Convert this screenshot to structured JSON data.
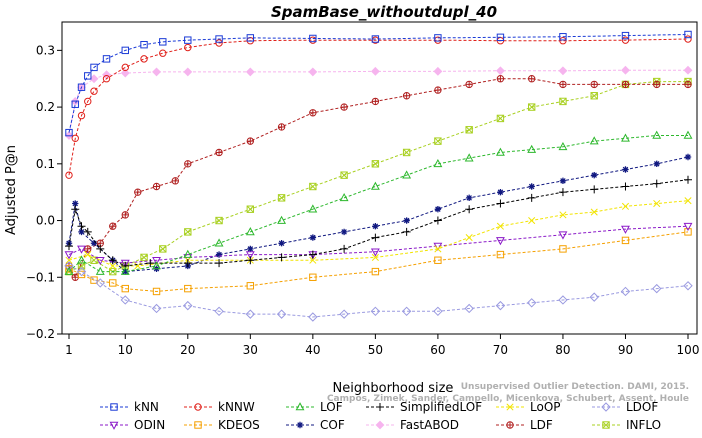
{
  "chart_data": {
    "type": "line",
    "title": "SpamBase_withoutdupl_40",
    "xlabel": "Neighborhood size",
    "ylabel": "Adjusted P@n",
    "xlim": [
      1,
      100
    ],
    "ylim": [
      -0.2,
      0.35
    ],
    "xticks": [
      1,
      10,
      20,
      30,
      40,
      50,
      60,
      70,
      80,
      90,
      100
    ],
    "yticks": [
      -0.2,
      -0.1,
      0.0,
      0.1,
      0.2,
      0.3
    ],
    "ytick_labels": [
      "−0.2",
      "−0.1",
      "0.0",
      "0.1",
      "0.2",
      "0.3"
    ],
    "grid": false,
    "legend_position": "bottom",
    "watermark": {
      "line1": "Unsupervised Outlier Detection. DAMI, 2015.",
      "line2": "Campos, Zimek, Sander, Campello, Micenkova, Schubert, Assent, Houle"
    },
    "series": [
      {
        "name": "kNN",
        "color": "#1a3ad6",
        "marker": "square",
        "points": [
          [
            1,
            0.155
          ],
          [
            2,
            0.205
          ],
          [
            3,
            0.235
          ],
          [
            4,
            0.255
          ],
          [
            5,
            0.27
          ],
          [
            7,
            0.285
          ],
          [
            10,
            0.3
          ],
          [
            13,
            0.31
          ],
          [
            16,
            0.315
          ],
          [
            20,
            0.318
          ],
          [
            25,
            0.32
          ],
          [
            30,
            0.322
          ],
          [
            40,
            0.321
          ],
          [
            50,
            0.32
          ],
          [
            60,
            0.322
          ],
          [
            70,
            0.323
          ],
          [
            80,
            0.324
          ],
          [
            90,
            0.326
          ],
          [
            100,
            0.328
          ]
        ]
      },
      {
        "name": "kNNW",
        "color": "#e0201a",
        "marker": "circle",
        "points": [
          [
            1,
            0.08
          ],
          [
            2,
            0.145
          ],
          [
            3,
            0.185
          ],
          [
            4,
            0.21
          ],
          [
            5,
            0.228
          ],
          [
            7,
            0.25
          ],
          [
            10,
            0.27
          ],
          [
            13,
            0.285
          ],
          [
            16,
            0.295
          ],
          [
            20,
            0.305
          ],
          [
            25,
            0.313
          ],
          [
            30,
            0.317
          ],
          [
            40,
            0.318
          ],
          [
            50,
            0.318
          ],
          [
            60,
            0.318
          ],
          [
            70,
            0.317
          ],
          [
            80,
            0.317
          ],
          [
            90,
            0.318
          ],
          [
            100,
            0.32
          ]
        ]
      },
      {
        "name": "LOF",
        "color": "#2db82d",
        "marker": "triangle-up",
        "points": [
          [
            1,
            -0.09
          ],
          [
            3,
            -0.07
          ],
          [
            6,
            -0.09
          ],
          [
            10,
            -0.09
          ],
          [
            15,
            -0.08
          ],
          [
            20,
            -0.06
          ],
          [
            25,
            -0.04
          ],
          [
            30,
            -0.02
          ],
          [
            35,
            0.0
          ],
          [
            40,
            0.02
          ],
          [
            45,
            0.04
          ],
          [
            50,
            0.06
          ],
          [
            55,
            0.08
          ],
          [
            60,
            0.1
          ],
          [
            65,
            0.11
          ],
          [
            70,
            0.12
          ],
          [
            75,
            0.125
          ],
          [
            80,
            0.13
          ],
          [
            85,
            0.14
          ],
          [
            90,
            0.145
          ],
          [
            95,
            0.15
          ],
          [
            100,
            0.15
          ]
        ]
      },
      {
        "name": "SimplifiedLOF",
        "color": "#000000",
        "marker": "plus",
        "points": [
          [
            1,
            -0.045
          ],
          [
            2,
            0.02
          ],
          [
            3,
            -0.01
          ],
          [
            4,
            -0.02
          ],
          [
            6,
            -0.05
          ],
          [
            8,
            -0.07
          ],
          [
            10,
            -0.08
          ],
          [
            14,
            -0.075
          ],
          [
            20,
            -0.075
          ],
          [
            25,
            -0.075
          ],
          [
            30,
            -0.07
          ],
          [
            35,
            -0.065
          ],
          [
            40,
            -0.06
          ],
          [
            45,
            -0.05
          ],
          [
            50,
            -0.03
          ],
          [
            55,
            -0.02
          ],
          [
            60,
            0.0
          ],
          [
            65,
            0.02
          ],
          [
            70,
            0.03
          ],
          [
            75,
            0.04
          ],
          [
            80,
            0.05
          ],
          [
            85,
            0.055
          ],
          [
            90,
            0.06
          ],
          [
            95,
            0.065
          ],
          [
            100,
            0.072
          ]
        ]
      },
      {
        "name": "LoOP",
        "color": "#f2e400",
        "marker": "x",
        "points": [
          [
            1,
            -0.07
          ],
          [
            4,
            -0.06
          ],
          [
            8,
            -0.08
          ],
          [
            12,
            -0.08
          ],
          [
            20,
            -0.07
          ],
          [
            30,
            -0.07
          ],
          [
            40,
            -0.07
          ],
          [
            50,
            -0.065
          ],
          [
            60,
            -0.05
          ],
          [
            65,
            -0.03
          ],
          [
            70,
            -0.01
          ],
          [
            75,
            0.0
          ],
          [
            80,
            0.01
          ],
          [
            85,
            0.015
          ],
          [
            90,
            0.025
          ],
          [
            95,
            0.03
          ],
          [
            100,
            0.035
          ]
        ]
      },
      {
        "name": "LDOF",
        "color": "#9a9ae0",
        "marker": "diamond",
        "points": [
          [
            1,
            -0.08
          ],
          [
            3,
            -0.09
          ],
          [
            6,
            -0.11
          ],
          [
            10,
            -0.14
          ],
          [
            15,
            -0.155
          ],
          [
            20,
            -0.15
          ],
          [
            25,
            -0.16
          ],
          [
            30,
            -0.165
          ],
          [
            35,
            -0.165
          ],
          [
            40,
            -0.17
          ],
          [
            45,
            -0.165
          ],
          [
            50,
            -0.16
          ],
          [
            55,
            -0.16
          ],
          [
            60,
            -0.16
          ],
          [
            65,
            -0.155
          ],
          [
            70,
            -0.15
          ],
          [
            75,
            -0.145
          ],
          [
            80,
            -0.14
          ],
          [
            85,
            -0.135
          ],
          [
            90,
            -0.125
          ],
          [
            95,
            -0.12
          ],
          [
            100,
            -0.115
          ]
        ]
      },
      {
        "name": "ODIN",
        "color": "#8b1ac8",
        "marker": "triangle-down",
        "points": [
          [
            1,
            -0.06
          ],
          [
            3,
            -0.05
          ],
          [
            6,
            -0.07
          ],
          [
            10,
            -0.075
          ],
          [
            15,
            -0.07
          ],
          [
            20,
            -0.065
          ],
          [
            30,
            -0.06
          ],
          [
            40,
            -0.06
          ],
          [
            50,
            -0.055
          ],
          [
            60,
            -0.045
          ],
          [
            70,
            -0.035
          ],
          [
            80,
            -0.025
          ],
          [
            90,
            -0.015
          ],
          [
            100,
            -0.01
          ]
        ]
      },
      {
        "name": "KDEOS",
        "color": "#f5a000",
        "marker": "square",
        "points": [
          [
            1,
            -0.085
          ],
          [
            3,
            -0.095
          ],
          [
            5,
            -0.105
          ],
          [
            8,
            -0.11
          ],
          [
            10,
            -0.12
          ],
          [
            15,
            -0.125
          ],
          [
            20,
            -0.12
          ],
          [
            30,
            -0.115
          ],
          [
            40,
            -0.1
          ],
          [
            50,
            -0.09
          ],
          [
            60,
            -0.07
          ],
          [
            70,
            -0.06
          ],
          [
            80,
            -0.05
          ],
          [
            90,
            -0.035
          ],
          [
            100,
            -0.02
          ]
        ]
      },
      {
        "name": "COF",
        "color": "#101880",
        "marker": "star",
        "points": [
          [
            1,
            -0.04
          ],
          [
            2,
            0.03
          ],
          [
            3,
            -0.02
          ],
          [
            5,
            -0.04
          ],
          [
            8,
            -0.07
          ],
          [
            10,
            -0.09
          ],
          [
            15,
            -0.085
          ],
          [
            20,
            -0.08
          ],
          [
            25,
            -0.06
          ],
          [
            30,
            -0.05
          ],
          [
            35,
            -0.04
          ],
          [
            40,
            -0.03
          ],
          [
            45,
            -0.02
          ],
          [
            50,
            -0.01
          ],
          [
            55,
            0.0
          ],
          [
            60,
            0.02
          ],
          [
            65,
            0.04
          ],
          [
            70,
            0.05
          ],
          [
            75,
            0.06
          ],
          [
            80,
            0.07
          ],
          [
            85,
            0.08
          ],
          [
            90,
            0.09
          ],
          [
            95,
            0.1
          ],
          [
            100,
            0.112
          ]
        ]
      },
      {
        "name": "FastABOD",
        "color": "#f6b4ee",
        "marker": "diamond-filled",
        "points": [
          [
            1,
            0.15
          ],
          [
            2,
            0.21
          ],
          [
            3,
            0.235
          ],
          [
            5,
            0.25
          ],
          [
            7,
            0.257
          ],
          [
            10,
            0.26
          ],
          [
            15,
            0.262
          ],
          [
            20,
            0.262
          ],
          [
            30,
            0.262
          ],
          [
            40,
            0.262
          ],
          [
            50,
            0.263
          ],
          [
            60,
            0.263
          ],
          [
            70,
            0.264
          ],
          [
            80,
            0.264
          ],
          [
            90,
            0.265
          ],
          [
            100,
            0.265
          ]
        ]
      },
      {
        "name": "LDF",
        "color": "#b02020",
        "marker": "circle-plus",
        "points": [
          [
            1,
            -0.08
          ],
          [
            2,
            -0.1
          ],
          [
            4,
            -0.05
          ],
          [
            6,
            -0.04
          ],
          [
            8,
            -0.01
          ],
          [
            10,
            0.01
          ],
          [
            12,
            0.05
          ],
          [
            15,
            0.06
          ],
          [
            18,
            0.07
          ],
          [
            20,
            0.1
          ],
          [
            25,
            0.12
          ],
          [
            30,
            0.14
          ],
          [
            35,
            0.165
          ],
          [
            40,
            0.19
          ],
          [
            45,
            0.2
          ],
          [
            50,
            0.21
          ],
          [
            55,
            0.22
          ],
          [
            60,
            0.23
          ],
          [
            65,
            0.24
          ],
          [
            70,
            0.25
          ],
          [
            75,
            0.25
          ],
          [
            80,
            0.24
          ],
          [
            85,
            0.24
          ],
          [
            90,
            0.24
          ],
          [
            95,
            0.24
          ],
          [
            100,
            0.24
          ]
        ]
      },
      {
        "name": "INFLO",
        "color": "#a8d020",
        "marker": "square-x",
        "points": [
          [
            1,
            -0.09
          ],
          [
            3,
            -0.08
          ],
          [
            5,
            -0.07
          ],
          [
            8,
            -0.09
          ],
          [
            10,
            -0.08
          ],
          [
            13,
            -0.065
          ],
          [
            16,
            -0.05
          ],
          [
            20,
            -0.02
          ],
          [
            25,
            0.0
          ],
          [
            30,
            0.02
          ],
          [
            35,
            0.04
          ],
          [
            40,
            0.06
          ],
          [
            45,
            0.08
          ],
          [
            50,
            0.1
          ],
          [
            55,
            0.12
          ],
          [
            60,
            0.14
          ],
          [
            65,
            0.16
          ],
          [
            70,
            0.18
          ],
          [
            75,
            0.2
          ],
          [
            80,
            0.21
          ],
          [
            85,
            0.22
          ],
          [
            90,
            0.24
          ],
          [
            95,
            0.245
          ],
          [
            100,
            0.245
          ]
        ]
      }
    ]
  }
}
